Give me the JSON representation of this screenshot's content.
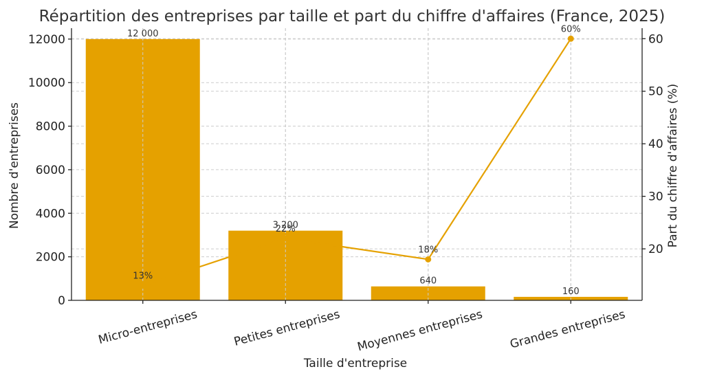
{
  "chart_data": {
    "type": "bar",
    "title": "Répartition des entreprises par taille et part du chiffre d'affaires (France, 2025)",
    "xlabel": "Taille d'entreprise",
    "ylabel": "Nombre d'entreprises",
    "y2label": "Part du chiffre d'affaires (%)",
    "categories": [
      "Micro-entreprises",
      "Petites entreprises",
      "Moyennes entreprises",
      "Grandes entreprises"
    ],
    "ylim": [
      0,
      12500
    ],
    "y_ticks": [
      0,
      2000,
      4000,
      6000,
      8000,
      10000,
      12000
    ],
    "y2lim": [
      10.2,
      62
    ],
    "y2_ticks": [
      20,
      30,
      40,
      50,
      60
    ],
    "grid": true,
    "series": [
      {
        "kind": "bar",
        "axis": "left",
        "values": [
          12000,
          3200,
          640,
          160
        ],
        "labels": [
          "12 000",
          "3 200",
          "640",
          "160"
        ],
        "color": "#E5A100"
      },
      {
        "kind": "line",
        "axis": "right",
        "values": [
          13,
          22,
          18,
          60
        ],
        "labels": [
          "13%",
          "22%",
          "18%",
          "60%"
        ],
        "color": "#E5A100"
      }
    ]
  }
}
